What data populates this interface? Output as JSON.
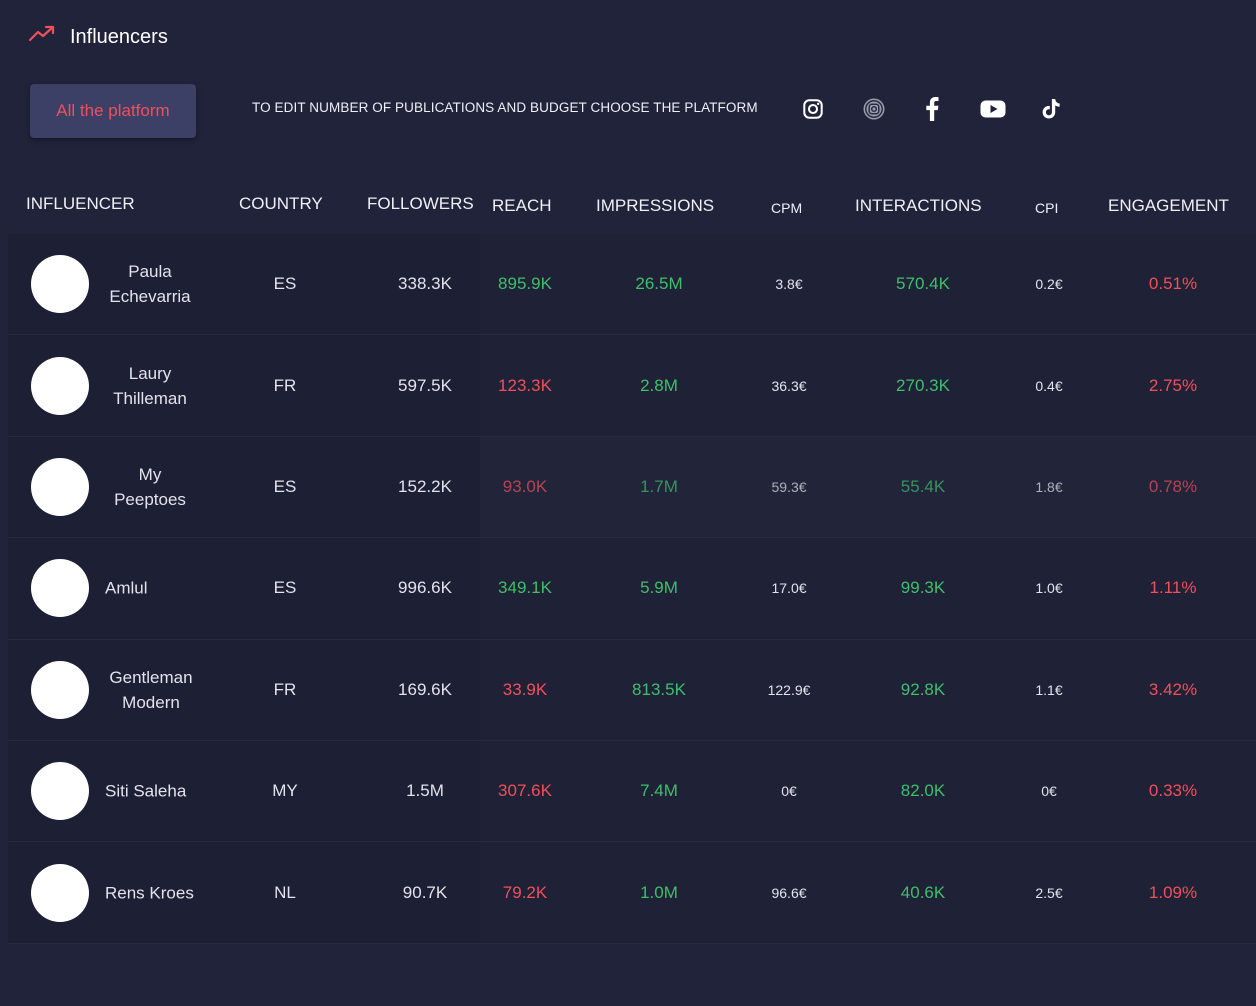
{
  "header": {
    "title": "Influencers",
    "trend_icon": "trending-up-icon",
    "platform_button": "All the platform",
    "notice": "TO EDIT NUMBER OF PUBLICATIONS AND BUDGET CHOOSE THE PLATFORM",
    "platforms": [
      {
        "name": "instagram",
        "icon": "instagram-icon"
      },
      {
        "name": "threads",
        "icon": "threads-icon"
      },
      {
        "name": "facebook",
        "icon": "facebook-icon"
      },
      {
        "name": "youtube",
        "icon": "youtube-icon"
      },
      {
        "name": "tiktok",
        "icon": "tiktok-icon"
      }
    ]
  },
  "colors": {
    "background": "#21233a",
    "positive": "#3fbf6a",
    "negative": "#f0505a",
    "button_bg": "#3c3f66"
  },
  "table": {
    "columns": {
      "influencer": "INFLUENCER",
      "country": "COUNTRY",
      "followers": "FOLLOWERS",
      "reach": "REACH",
      "impressions": "IMPRESSIONS",
      "cpm": "CPM",
      "interactions": "INTERACTIONS",
      "cpi": "CPI",
      "engagement": "ENGAGEMENT"
    },
    "rows": [
      {
        "name": "Paula Echevarria",
        "name_line1": "Paula",
        "name_line2": "Echevarria",
        "country": "ES",
        "followers": "338.3K",
        "reach": "895.9K",
        "reach_status": "positive",
        "impressions": "26.5M",
        "cpm": "3.8€",
        "interactions": "570.4K",
        "cpi": "0.2€",
        "engagement": "0.51%"
      },
      {
        "name": "Laury Thilleman",
        "name_line1": "Laury",
        "name_line2": "Thilleman",
        "country": "FR",
        "followers": "597.5K",
        "reach": "123.3K",
        "reach_status": "negative",
        "impressions": "2.8M",
        "cpm": "36.3€",
        "interactions": "270.3K",
        "cpi": "0.4€",
        "engagement": "2.75%"
      },
      {
        "name": "My Peeptoes",
        "name_line1": "My",
        "name_line2": "Peeptoes",
        "country": "ES",
        "followers": "152.2K",
        "reach": "93.0K",
        "reach_status": "negative",
        "impressions": "1.7M",
        "cpm": "59.3€",
        "interactions": "55.4K",
        "cpi": "1.8€",
        "engagement": "0.78%"
      },
      {
        "name": "Amlul",
        "name_line1": "Amlul",
        "name_line2": "",
        "country": "ES",
        "followers": "996.6K",
        "reach": "349.1K",
        "reach_status": "positive",
        "impressions": "5.9M",
        "cpm": "17.0€",
        "interactions": "99.3K",
        "cpi": "1.0€",
        "engagement": "1.11%"
      },
      {
        "name": "Gentleman Modern",
        "name_line1": "Gentleman",
        "name_line2": "Modern",
        "country": "FR",
        "followers": "169.6K",
        "reach": "33.9K",
        "reach_status": "negative",
        "impressions": "813.5K",
        "cpm": "122.9€",
        "interactions": "92.8K",
        "cpi": "1.1€",
        "engagement": "3.42%"
      },
      {
        "name": "Siti Saleha",
        "name_line1": "Siti Saleha",
        "name_line2": "",
        "country": "MY",
        "followers": "1.5M",
        "reach": "307.6K",
        "reach_status": "negative",
        "impressions": "7.4M",
        "cpm": "0€",
        "interactions": "82.0K",
        "cpi": "0€",
        "engagement": "0.33%"
      },
      {
        "name": "Rens Kroes",
        "name_line1": "Rens Kroes",
        "name_line2": "",
        "country": "NL",
        "followers": "90.7K",
        "reach": "79.2K",
        "reach_status": "negative",
        "impressions": "1.0M",
        "cpm": "96.6€",
        "interactions": "40.6K",
        "cpi": "2.5€",
        "engagement": "1.09%"
      }
    ]
  }
}
